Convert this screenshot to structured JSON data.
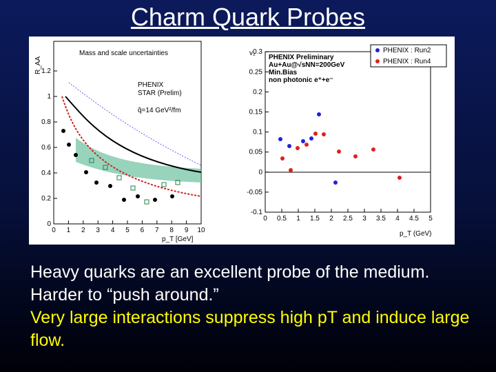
{
  "title": "Charm Quark Probes",
  "figure": {
    "left": {
      "ylabel": "R_AA",
      "xlabel": "p_T [GeV]",
      "yticks": [
        "0",
        "0.2",
        "0.4",
        "0.6",
        "0.8",
        "1",
        "1.2"
      ],
      "xticks": [
        "0",
        "1",
        "2",
        "3",
        "4",
        "5",
        "6",
        "7",
        "8",
        "9",
        "10"
      ],
      "legend": [
        "Mass and scale uncertainties",
        "PHENIX",
        "STAR (Prelim)",
        "q̂=14 GeV²/fm"
      ]
    },
    "right": {
      "ylabel": "v₂",
      "xlabel": "p_T (GeV)",
      "yticks": [
        "-0.1",
        "-0.05",
        "0",
        "0.05",
        "0.1",
        "0.15",
        "0.2",
        "0.25",
        "0.3"
      ],
      "xticks": [
        "0",
        "0.5",
        "1",
        "1.5",
        "2",
        "2.5",
        "3",
        "3.5",
        "4",
        "4.5",
        "5"
      ],
      "header": [
        "PHENIX Preliminary",
        "Au+Au@√sNN=200GeV",
        "Min.Bias",
        "non photonic e⁺+e⁻"
      ],
      "legend": [
        "PHENIX : Run2",
        "PHENIX : Run4"
      ]
    }
  },
  "body": {
    "line1": "Heavy quarks are an excellent probe of the medium.",
    "line2": "Harder to “push around.”",
    "line3": "Very large interactions suppress high pT and induce large flow."
  }
}
